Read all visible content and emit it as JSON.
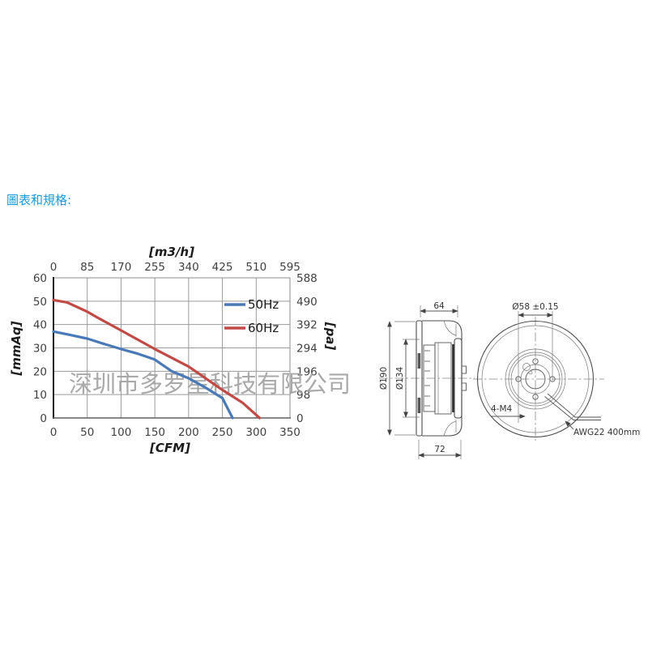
{
  "page": {
    "heading": "圖表和規格:",
    "heading_color": "#1a9cd8",
    "background": "#ffffff"
  },
  "watermark": {
    "text": "深圳市多罗星科技有限公司",
    "color": "#a0a0a0"
  },
  "chart_data": {
    "type": "line",
    "grid": true,
    "legend_position": "top-right-inside",
    "x_axis_bottom": {
      "label": "[CFM]",
      "min": 0,
      "max": 350,
      "ticks": [
        0,
        50,
        100,
        150,
        200,
        250,
        300,
        350
      ]
    },
    "x_axis_top": {
      "label": "[m3/h]",
      "ticks": [
        0,
        85,
        170,
        255,
        340,
        425,
        510,
        595
      ]
    },
    "y_axis_left": {
      "label": "[mmAq]",
      "min": 0,
      "max": 60,
      "ticks": [
        60,
        50,
        40,
        30,
        20,
        10,
        0
      ]
    },
    "y_axis_right": {
      "label": "[pa]",
      "ticks": [
        588,
        490,
        392,
        294,
        196,
        98,
        0
      ]
    },
    "series": [
      {
        "name": "50Hz",
        "color": "#4a79b8",
        "points": [
          [
            0,
            37
          ],
          [
            25,
            35.5
          ],
          [
            50,
            34
          ],
          [
            75,
            31.7
          ],
          [
            100,
            29.5
          ],
          [
            125,
            27.5
          ],
          [
            150,
            25
          ],
          [
            175,
            20
          ],
          [
            200,
            17
          ],
          [
            225,
            13
          ],
          [
            250,
            8.5
          ],
          [
            265,
            0
          ]
        ]
      },
      {
        "name": "60Hz",
        "color": "#c04a45",
        "points": [
          [
            0,
            50.5
          ],
          [
            20,
            49.5
          ],
          [
            35,
            47.5
          ],
          [
            50,
            45.5
          ],
          [
            65,
            43
          ],
          [
            100,
            37.5
          ],
          [
            150,
            29.5
          ],
          [
            200,
            22
          ],
          [
            250,
            12
          ],
          [
            280,
            6.5
          ],
          [
            305,
            0
          ]
        ]
      }
    ]
  },
  "drawing": {
    "side_view": {
      "dim_top": "64",
      "dim_bottom": "72",
      "dim_outer": "Ø190",
      "dim_inlet": "Ø134"
    },
    "front_view": {
      "dim_bolt_circle": "Ø58 ±0.15",
      "dim_holes": "4-M4",
      "wire_label": "AWG22 400mm"
    }
  }
}
